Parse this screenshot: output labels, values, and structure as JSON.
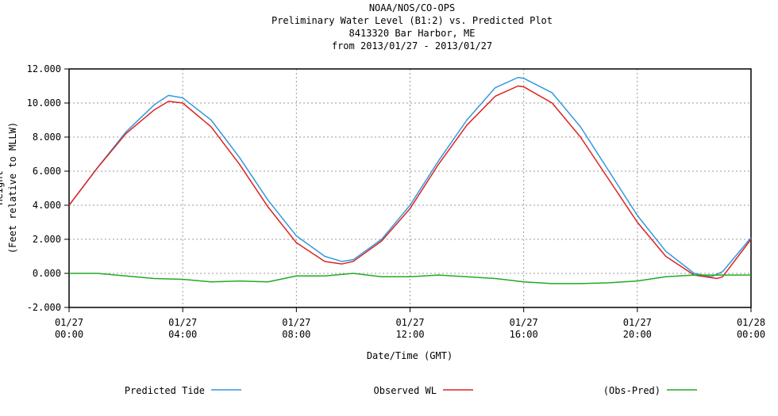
{
  "chart_data": {
    "type": "line",
    "title": [
      "NOAA/NOS/CO-OPS",
      "Preliminary  Water Level (B1:2) vs. Predicted Plot",
      "8413320 Bar Harbor, ME",
      "from 2013/01/27 - 2013/01/27"
    ],
    "xlabel": "Date/Time (GMT)",
    "ylabel": [
      "Height",
      "(Feet relative to MLLW)"
    ],
    "ylim": [
      -2,
      12
    ],
    "xlim_hours": [
      0,
      24
    ],
    "yticks": [
      "-2.000",
      "0.000",
      "2.000",
      "4.000",
      "6.000",
      "8.000",
      "10.000",
      "12.000"
    ],
    "xticks": [
      {
        "date": "01/27",
        "time": "00:00"
      },
      {
        "date": "01/27",
        "time": "04:00"
      },
      {
        "date": "01/27",
        "time": "08:00"
      },
      {
        "date": "01/27",
        "time": "12:00"
      },
      {
        "date": "01/27",
        "time": "16:00"
      },
      {
        "date": "01/27",
        "time": "20:00"
      },
      {
        "date": "01/28",
        "time": "00:00"
      }
    ],
    "grid": true,
    "legend_placement": "bottom",
    "series": [
      {
        "name": "Predicted Tide",
        "color": "#3399dd",
        "x": [
          0,
          1,
          2,
          3,
          3.5,
          4,
          5,
          6,
          7,
          8,
          9,
          9.6,
          10,
          11,
          12,
          13,
          14,
          15,
          15.8,
          16,
          17,
          18,
          19,
          20,
          21,
          22,
          22.6,
          23,
          24
        ],
        "y": [
          4.0,
          6.2,
          8.3,
          9.9,
          10.45,
          10.3,
          9.0,
          6.8,
          4.3,
          2.2,
          1.0,
          0.7,
          0.8,
          2.0,
          4.0,
          6.6,
          9.0,
          10.9,
          11.5,
          11.45,
          10.6,
          8.6,
          6.0,
          3.4,
          1.3,
          0.0,
          -0.2,
          0.1,
          2.1
        ]
      },
      {
        "name": "Observed WL",
        "color": "#dd2222",
        "x": [
          0,
          1,
          2,
          3,
          3.5,
          4,
          5,
          6,
          7,
          8,
          9,
          9.6,
          10,
          11,
          12,
          13,
          14,
          15,
          15.8,
          16,
          17,
          18,
          19,
          20,
          21,
          22,
          22.8,
          23,
          24
        ],
        "y": [
          4.0,
          6.2,
          8.2,
          9.6,
          10.1,
          10.0,
          8.6,
          6.4,
          3.9,
          1.8,
          0.7,
          0.55,
          0.7,
          1.9,
          3.8,
          6.4,
          8.7,
          10.4,
          11.0,
          10.95,
          10.0,
          8.0,
          5.5,
          3.0,
          1.0,
          -0.1,
          -0.3,
          -0.2,
          2.0
        ]
      },
      {
        "name": "(Obs-Pred)",
        "color": "#22aa22",
        "x": [
          0,
          1,
          2,
          3,
          4,
          5,
          6,
          7,
          8,
          9,
          10,
          11,
          12,
          13,
          14,
          15,
          16,
          17,
          18,
          19,
          20,
          21,
          22,
          23,
          24
        ],
        "y": [
          0,
          0,
          -0.15,
          -0.3,
          -0.35,
          -0.5,
          -0.45,
          -0.5,
          -0.15,
          -0.15,
          0.0,
          -0.2,
          -0.2,
          -0.1,
          -0.2,
          -0.3,
          -0.5,
          -0.6,
          -0.6,
          -0.55,
          -0.45,
          -0.2,
          -0.1,
          -0.1,
          -0.1
        ]
      }
    ]
  }
}
